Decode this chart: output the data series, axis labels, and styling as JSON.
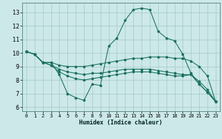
{
  "xlabel": "Humidex (Indice chaleur)",
  "bg_color": "#cce8e8",
  "grid_color": "#aacccc",
  "line_color": "#1a7060",
  "xlim": [
    -0.5,
    23.5
  ],
  "ylim": [
    5.7,
    13.7
  ],
  "xticks": [
    0,
    1,
    2,
    3,
    4,
    5,
    6,
    7,
    8,
    9,
    10,
    11,
    12,
    13,
    14,
    15,
    16,
    17,
    18,
    19,
    20,
    21,
    22,
    23
  ],
  "yticks": [
    6,
    7,
    8,
    9,
    10,
    11,
    12,
    13
  ],
  "lines": [
    {
      "x": [
        0,
        1,
        2,
        3,
        4,
        5,
        6,
        7,
        8,
        9,
        10,
        11,
        12,
        13,
        14,
        15,
        16,
        17,
        18,
        19,
        20,
        21,
        22,
        23
      ],
      "y": [
        10.1,
        9.9,
        9.3,
        9.3,
        8.4,
        7.0,
        6.7,
        6.5,
        7.7,
        7.6,
        10.5,
        11.1,
        12.4,
        13.2,
        13.3,
        13.2,
        11.6,
        11.1,
        10.9,
        9.9,
        8.5,
        7.7,
        7.1,
        6.4
      ]
    },
    {
      "x": [
        0,
        1,
        2,
        3,
        4,
        5,
        6,
        7,
        8,
        9,
        10,
        11,
        12,
        13,
        14,
        15,
        16,
        17,
        18,
        19,
        20,
        21,
        22,
        23
      ],
      "y": [
        10.1,
        9.9,
        9.3,
        9.3,
        9.1,
        9.0,
        9.0,
        9.0,
        9.1,
        9.2,
        9.3,
        9.4,
        9.5,
        9.6,
        9.6,
        9.7,
        9.7,
        9.7,
        9.6,
        9.6,
        9.4,
        9.0,
        8.3,
        6.4
      ]
    },
    {
      "x": [
        0,
        1,
        2,
        3,
        4,
        5,
        6,
        7,
        8,
        9,
        10,
        11,
        12,
        13,
        14,
        15,
        16,
        17,
        18,
        19,
        20,
        21,
        22,
        23
      ],
      "y": [
        10.1,
        9.9,
        9.3,
        9.1,
        8.8,
        8.6,
        8.5,
        8.4,
        8.5,
        8.5,
        8.6,
        8.7,
        8.8,
        8.8,
        8.8,
        8.8,
        8.7,
        8.6,
        8.5,
        8.4,
        8.4,
        7.9,
        7.3,
        6.4
      ]
    },
    {
      "x": [
        0,
        1,
        2,
        3,
        4,
        5,
        6,
        7,
        8,
        9,
        10,
        11,
        12,
        13,
        14,
        15,
        16,
        17,
        18,
        19,
        20,
        21,
        22,
        23
      ],
      "y": [
        10.1,
        9.9,
        9.3,
        9.1,
        8.6,
        8.3,
        8.1,
        8.0,
        8.1,
        8.2,
        8.3,
        8.4,
        8.5,
        8.6,
        8.6,
        8.6,
        8.5,
        8.4,
        8.3,
        8.3,
        8.4,
        7.7,
        7.1,
        6.4
      ]
    }
  ]
}
